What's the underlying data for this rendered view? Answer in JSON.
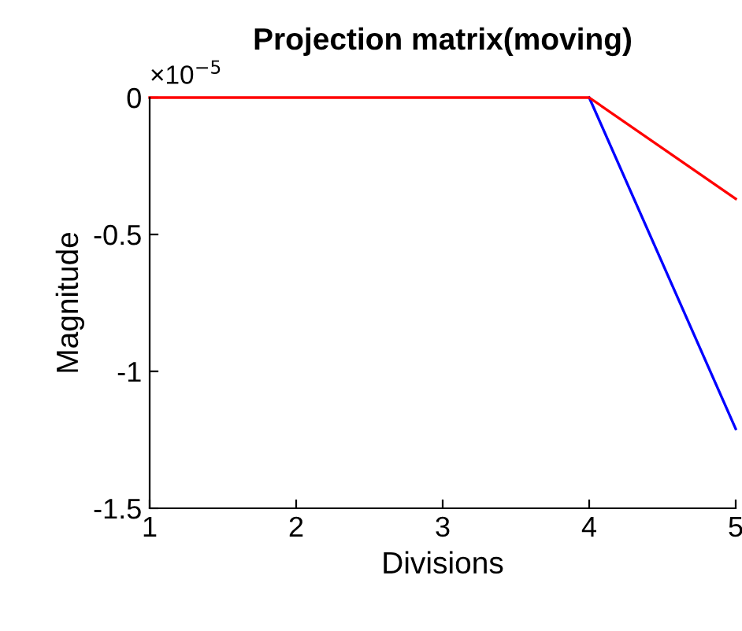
{
  "chart_data": {
    "type": "line",
    "title": "Projection matrix(moving)",
    "xlabel": "Divisions",
    "ylabel": "Magnitude",
    "x": [
      1,
      2,
      3,
      4,
      5
    ],
    "series": [
      {
        "color": "#0000ff",
        "values": [
          null,
          null,
          null,
          0,
          -1.21
        ]
      },
      {
        "color": "#ff0000",
        "values": [
          0,
          0,
          0,
          0,
          -0.37
        ]
      }
    ],
    "xlim": [
      1,
      5
    ],
    "xticks": [
      1,
      2,
      3,
      4,
      5
    ],
    "ylim": [
      -1.5,
      0
    ],
    "yticks": [
      -1.5,
      -1,
      -0.5,
      0
    ],
    "annotations": [
      "×10$^{−5}$"
    ],
    "grid": false,
    "legend": false,
    "marker": "none",
    "line_style": "solid"
  }
}
